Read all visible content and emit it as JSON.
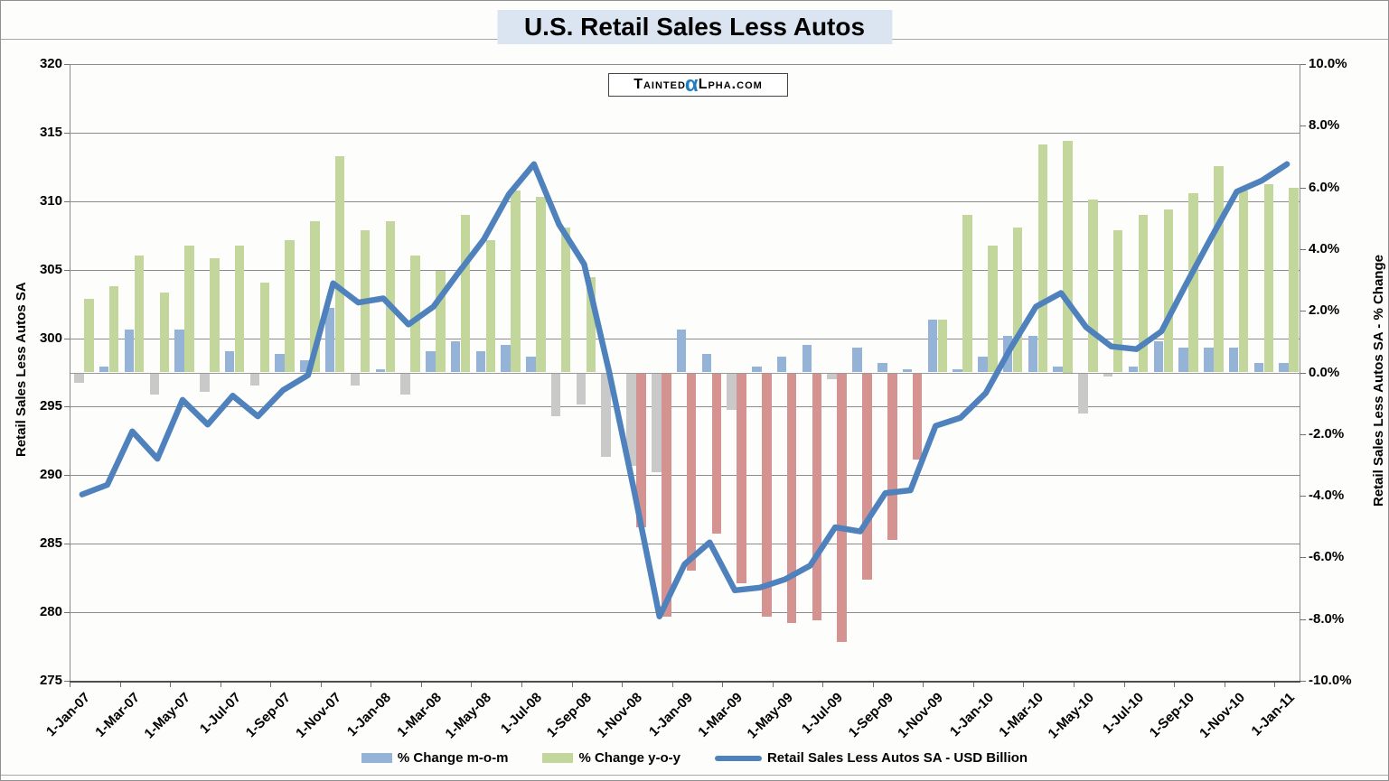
{
  "title": "U.S. Retail Sales Less Autos",
  "watermark": {
    "part1": "Tainted",
    "alpha": "α",
    "part2": "Lpha.com"
  },
  "left_axis": {
    "title": "Retail Sales Less Autos SA",
    "min": 275,
    "max": 320,
    "step": 5,
    "tick_labels": [
      "320",
      "315",
      "310",
      "305",
      "300",
      "295",
      "290",
      "285",
      "280",
      "275"
    ]
  },
  "right_axis": {
    "title": "Retail Sales Less Autos SA - % Change",
    "min": -10,
    "max": 10,
    "step": 2,
    "tick_labels": [
      "10.0%",
      "8.0%",
      "6.0%",
      "4.0%",
      "2.0%",
      "0.0%",
      "-2.0%",
      "-4.0%",
      "-6.0%",
      "-8.0%",
      "-10.0%"
    ]
  },
  "legend": {
    "items": [
      {
        "swatch": "bar-blue",
        "label": "% Change m-o-m"
      },
      {
        "swatch": "bar-green",
        "label": "% Change y-o-y"
      },
      {
        "swatch": "line-blue",
        "label": "Retail Sales Less Autos SA - USD Billion"
      }
    ]
  },
  "colors": {
    "mom_positive": "#95B3D7",
    "mom_negative": "#C9C9C9",
    "yoy_positive": "#C3D69B",
    "yoy_negative": "#D49390",
    "line": "#4F81BD",
    "gridline": "#8C8C8C",
    "title_highlight": "#DBE5F1",
    "watermark_alpha": "#1F7EC2"
  },
  "chart_data": {
    "type": "combo-bar-line",
    "x_label_every": 2,
    "months": [
      "1-Jan-07",
      "1-Feb-07",
      "1-Mar-07",
      "1-Apr-07",
      "1-May-07",
      "1-Jun-07",
      "1-Jul-07",
      "1-Aug-07",
      "1-Sep-07",
      "1-Oct-07",
      "1-Nov-07",
      "1-Dec-07",
      "1-Jan-08",
      "1-Feb-08",
      "1-Mar-08",
      "1-Apr-08",
      "1-May-08",
      "1-Jun-08",
      "1-Jul-08",
      "1-Aug-08",
      "1-Sep-08",
      "1-Oct-08",
      "1-Nov-08",
      "1-Dec-08",
      "1-Jan-09",
      "1-Feb-09",
      "1-Mar-09",
      "1-Apr-09",
      "1-May-09",
      "1-Jun-09",
      "1-Jul-09",
      "1-Aug-09",
      "1-Sep-09",
      "1-Oct-09",
      "1-Nov-09",
      "1-Dec-09",
      "1-Jan-10",
      "1-Feb-10",
      "1-Mar-10",
      "1-Apr-10",
      "1-May-10",
      "1-Jun-10",
      "1-Jul-10",
      "1-Aug-10",
      "1-Sep-10",
      "1-Oct-10",
      "1-Nov-10",
      "1-Dec-10",
      "1-Jan-11"
    ],
    "series": [
      {
        "name": "% Change m-o-m",
        "type": "bar",
        "axis": "right",
        "unit": "%",
        "values": [
          -0.3,
          0.2,
          1.4,
          -0.7,
          1.4,
          -0.6,
          0.7,
          -0.4,
          0.6,
          0.4,
          2.1,
          -0.4,
          0.1,
          -0.7,
          0.7,
          1.0,
          0.7,
          0.9,
          0.5,
          -1.4,
          -1.0,
          -2.7,
          -3.0,
          -3.2,
          1.4,
          0.6,
          -1.2,
          0.2,
          0.5,
          0.9,
          -0.2,
          0.8,
          0.3,
          0.1,
          1.7,
          0.1,
          0.5,
          1.2,
          1.2,
          0.2,
          -1.3,
          -0.1,
          0.2,
          1.0,
          0.8,
          0.8,
          0.8,
          0.3,
          0.3
        ]
      },
      {
        "name": "% Change y-o-y",
        "type": "bar",
        "axis": "right",
        "unit": "%",
        "values": [
          2.4,
          2.8,
          3.8,
          2.6,
          4.1,
          3.7,
          4.1,
          2.9,
          4.3,
          4.9,
          7.0,
          4.6,
          4.9,
          3.8,
          3.3,
          5.1,
          4.3,
          5.9,
          5.7,
          4.7,
          3.1,
          0.0,
          -5.0,
          -7.9,
          -6.4,
          -5.2,
          -6.8,
          -7.9,
          -8.1,
          -8.0,
          -8.7,
          -6.7,
          -5.4,
          -2.8,
          1.7,
          5.1,
          4.1,
          4.7,
          7.4,
          7.5,
          5.6,
          4.6,
          5.1,
          5.3,
          5.8,
          6.7,
          5.9,
          6.1,
          6.0
        ]
      },
      {
        "name": "Retail Sales Less Autos SA - USD Billion",
        "type": "line",
        "axis": "left",
        "unit": "USD Billion",
        "values": [
          288.6,
          289.3,
          293.2,
          291.2,
          295.5,
          293.7,
          295.8,
          294.3,
          296.2,
          297.3,
          304.0,
          302.6,
          302.9,
          301.0,
          302.3,
          304.8,
          307.2,
          310.5,
          312.7,
          308.3,
          305.4,
          297.5,
          288.8,
          279.7,
          283.5,
          285.1,
          281.6,
          281.8,
          282.4,
          283.4,
          286.2,
          285.9,
          288.7,
          288.9,
          293.6,
          294.2,
          296.0,
          299.3,
          302.3,
          303.3,
          300.8,
          299.4,
          299.2,
          300.5,
          304.0,
          307.4,
          310.7,
          311.5,
          312.7
        ]
      }
    ]
  }
}
